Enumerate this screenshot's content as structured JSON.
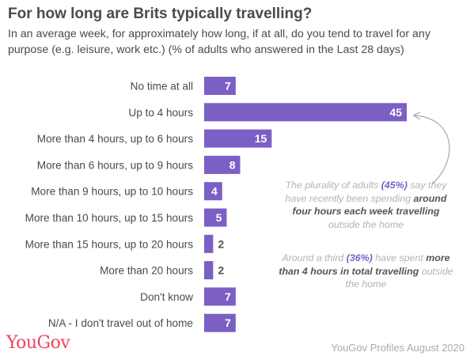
{
  "header": {
    "title": "For how long are Brits typically travelling?",
    "subtitle": "In an average week, for approximately how long, if at all, do you tend to travel for any purpose (e.g. leisure, work etc.) (% of adults who answered in the Last 28 days)"
  },
  "chart_data": {
    "type": "bar",
    "orientation": "horizontal",
    "categories": [
      "No time at all",
      "Up to 4 hours",
      "More than 4 hours, up to 6 hours",
      "More than 6 hours, up to 9 hours",
      "More than 9 hours, up to 10 hours",
      "More than 10 hours, up to 15 hours",
      "More than 15 hours, up to 20 hours",
      "More than 20 hours",
      "Don't know",
      "N/A - I don't travel out of home"
    ],
    "values": [
      7,
      45,
      15,
      8,
      4,
      5,
      2,
      2,
      7,
      7
    ],
    "bar_color": "#7b5fc4",
    "grid": false,
    "legend": "none"
  },
  "annotations": {
    "first": {
      "part1": "The plurality of adults ",
      "pct": "(45%)",
      "part2": " say they have recently been spending ",
      "bold": "around four hours each week travelling",
      "part3": " outside the home"
    },
    "second": {
      "part1": "Around a third ",
      "pct": "(36%)",
      "part2": " have spent ",
      "bold": "more than 4 hours in total travelling",
      "part3": " outside the home"
    }
  },
  "footer": {
    "logo": "YouGov",
    "source": "YouGov Profiles August 2020"
  },
  "colors": {
    "accent": "#7b5fc4",
    "logo": "#f0425e",
    "annotation": "#b3b3b3"
  }
}
